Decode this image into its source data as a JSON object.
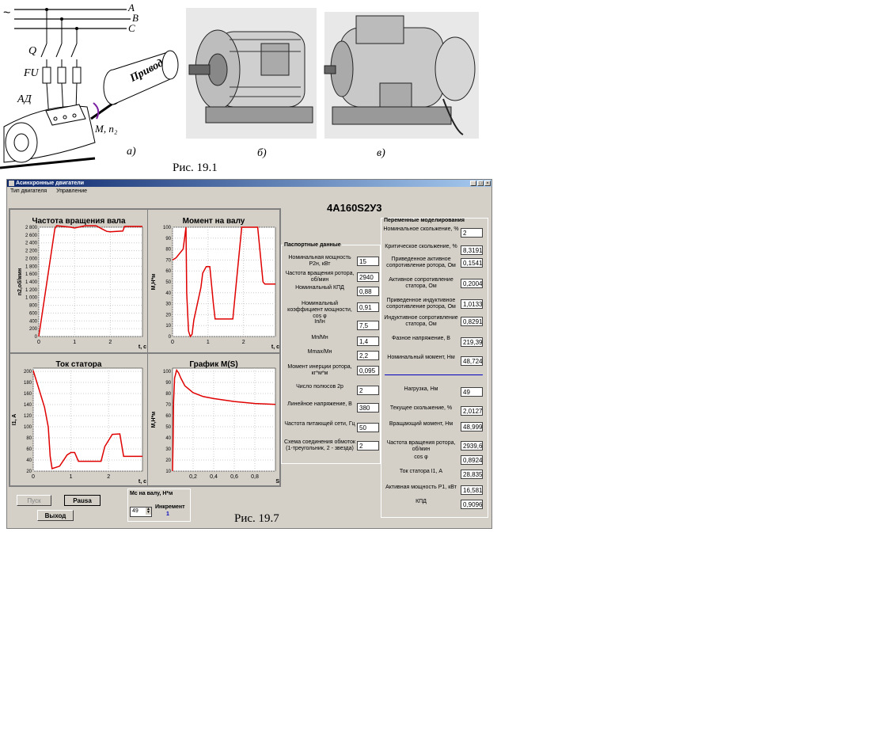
{
  "figure_top": {
    "phase_labels": [
      "A",
      "B",
      "C"
    ],
    "tilde": "~",
    "switch_label": "Q",
    "fuse_label": "FU",
    "motor_label": "АД",
    "drive_label": "Привод",
    "torque_label": "M, n₂",
    "subfig_a": "а)",
    "subfig_b": "б)",
    "subfig_c": "в)",
    "caption": "Рис. 19.1"
  },
  "window": {
    "title": "Асинхронные двигатели",
    "menu": [
      "Тип двигателя",
      "Управление"
    ],
    "controls": [
      "_",
      "□",
      "×"
    ],
    "motor_type": "4А160S2У3"
  },
  "charts": {
    "speed": {
      "title": "Частота вращения вала",
      "ylabel": "n2,об/мин",
      "xlabel": "t, c",
      "yticks": [
        "2 800",
        "2 600",
        "2 400",
        "2 200",
        "2 000",
        "1 800",
        "1 600",
        "1 400",
        "1 200",
        "1 000",
        "800",
        "600",
        "400",
        "200",
        "0"
      ],
      "xticks": [
        "0",
        "1",
        "2"
      ]
    },
    "torque": {
      "title": "Момент на валу",
      "ylabel": "М,Н*м",
      "xlabel": "t, c",
      "yticks": [
        "100",
        "90",
        "80",
        "70",
        "60",
        "50",
        "40",
        "30",
        "20",
        "10",
        "0"
      ],
      "xticks": [
        "0",
        "1",
        "2"
      ]
    },
    "current": {
      "title": "Ток статора",
      "ylabel": "I1, A",
      "xlabel": "t, c",
      "yticks": [
        "200",
        "180",
        "160",
        "140",
        "120",
        "100",
        "80",
        "60",
        "40",
        "20"
      ],
      "xticks": [
        "0",
        "1",
        "2"
      ]
    },
    "ms": {
      "title": "График M(S)",
      "ylabel": "М,Н*м",
      "xlabel": "S",
      "yticks": [
        "100",
        "90",
        "80",
        "70",
        "60",
        "50",
        "40",
        "30",
        "20",
        "10"
      ],
      "xticks": [
        "0,2",
        "0,4",
        "0,6",
        "0,8"
      ]
    }
  },
  "chart_data": [
    {
      "type": "line",
      "title": "Частота вращения вала",
      "xlabel": "t, c",
      "ylabel": "n2,об/мин",
      "xlim": [
        0,
        2.9
      ],
      "ylim": [
        0,
        2900
      ],
      "series": [
        {
          "x": [
            0,
            0.45,
            0.5,
            0.9,
            1.0,
            1.3,
            1.6,
            1.9,
            2.0,
            2.35,
            2.4,
            2.9
          ],
          "values": [
            0,
            2860,
            2940,
            2900,
            2880,
            2940,
            2940,
            2790,
            2780,
            2800,
            2920,
            2920
          ]
        }
      ]
    },
    {
      "type": "line",
      "title": "Момент на валу",
      "xlabel": "t, c",
      "ylabel": "М,Н*м",
      "xlim": [
        0,
        2.9
      ],
      "ylim": [
        0,
        100
      ],
      "series": [
        {
          "x": [
            0,
            0.1,
            0.3,
            0.38,
            0.4,
            0.45,
            0.5,
            0.55,
            0.6,
            0.8,
            0.85,
            0.95,
            1.05,
            1.15,
            1.2,
            1.4,
            1.7,
            1.8,
            1.95,
            2.05,
            2.4,
            2.55,
            2.6,
            2.9
          ],
          "values": [
            70,
            72,
            80,
            100,
            40,
            5,
            0,
            2,
            15,
            45,
            58,
            64,
            64,
            30,
            16,
            16,
            16,
            50,
            100,
            100,
            100,
            50,
            48,
            48
          ]
        }
      ]
    },
    {
      "type": "line",
      "title": "Ток статора",
      "xlabel": "t, c",
      "ylabel": "I1, A",
      "xlim": [
        0,
        2.9
      ],
      "ylim": [
        0,
        210
      ],
      "series": [
        {
          "x": [
            0,
            0.1,
            0.3,
            0.4,
            0.45,
            0.5,
            0.7,
            0.9,
            1.0,
            1.1,
            1.2,
            1.4,
            1.6,
            1.8,
            1.9,
            2.1,
            2.3,
            2.4,
            2.9
          ],
          "values": [
            205,
            180,
            130,
            90,
            30,
            5,
            10,
            33,
            38,
            38,
            20,
            20,
            20,
            20,
            50,
            75,
            76,
            30,
            30
          ]
        }
      ]
    },
    {
      "type": "line",
      "title": "График M(S)",
      "xlabel": "S",
      "ylabel": "М,Н*м",
      "xlim": [
        0,
        1
      ],
      "ylim": [
        0,
        105
      ],
      "series": [
        {
          "x": [
            0,
            0.005,
            0.01,
            0.02,
            0.04,
            0.06,
            0.08,
            0.12,
            0.2,
            0.3,
            0.4,
            0.6,
            0.8,
            1.0
          ],
          "values": [
            0,
            30,
            70,
            95,
            103,
            100,
            95,
            87,
            80,
            76,
            74,
            71,
            69,
            68
          ]
        }
      ]
    }
  ],
  "passport": {
    "title": "Паспортные данные",
    "rows": [
      {
        "label": "Номинальная мощность P2н, кВт",
        "value": "15"
      },
      {
        "label": "Частота вращения ротора, об/мин",
        "value": "2940"
      },
      {
        "label": "Номинальный КПД",
        "value": "0,88"
      },
      {
        "label": "Номинальный коэффициент мощности, cos φ",
        "value": "0,91"
      },
      {
        "label": "Iп/Iн",
        "value": "7,5"
      },
      {
        "label": "Mп/Mн",
        "value": "1,4"
      },
      {
        "label": "Mmax/Mн",
        "value": "2,2"
      },
      {
        "label": "Момент инерции ротора, кг*м*м",
        "value": "0,095"
      },
      {
        "label": "Число полюсов 2р",
        "value": "2"
      },
      {
        "label": "Линейное напряжение, В",
        "value": "380"
      },
      {
        "label": "Частота питающей сети, Гц",
        "value": "50"
      },
      {
        "label": "Схема соединения обмоток (1-треугольник, 2 - звезда)",
        "value": "2"
      }
    ]
  },
  "model": {
    "title": "Переменные моделирования",
    "rows_top": [
      {
        "label": "Номинальное скольжение, %",
        "value": "2"
      },
      {
        "label": "Критическое скольжение, %",
        "value": "8,31918"
      },
      {
        "label": "Приведенное активное сопротивление ротора, Ом",
        "value": "0,15418"
      },
      {
        "label": "Активное сопротивление статора, Ом",
        "value": "0,20043"
      },
      {
        "label": "Приведенное индуктивное сопротивление ротора, Ом",
        "value": "1,01334"
      },
      {
        "label": "Индуктивное сопротивление статора, Ом",
        "value": "0,82910"
      },
      {
        "label": "Фазное напряжение, В",
        "value": "219,393"
      },
      {
        "label": "Номинальный момент, Нм",
        "value": "48,7244"
      }
    ],
    "rows_bottom": [
      {
        "label": "Нагрузка, Нм",
        "value": "49"
      },
      {
        "label": "Текущее скольжение, %",
        "value": "2,01279"
      },
      {
        "label": "Вращающий момент, Нм",
        "value": "48,9999"
      },
      {
        "label": "Частота вращения ротора, об/мин",
        "value": "2939,61"
      },
      {
        "label": "cos φ",
        "value": "0,89249"
      },
      {
        "label": "Ток статора I1, А",
        "value": "28,8357"
      },
      {
        "label": "Активная мощность P1, кВт",
        "value": "16,5813"
      },
      {
        "label": "КПД",
        "value": "0,90962"
      }
    ]
  },
  "controls": {
    "start": "Пуск",
    "pause": "Pausa",
    "exit": "Выход",
    "ms_label": "Мс на валу, Н*м",
    "ms_value": "49",
    "inc_label": "Инкремент",
    "inc_value": "1"
  },
  "caption_bottom": "Рис. 19.7",
  "colors": {
    "curve": "#e00000",
    "titlebar": "#0a246a",
    "divider": "#0000c0",
    "inc_value": "#0000c0"
  }
}
